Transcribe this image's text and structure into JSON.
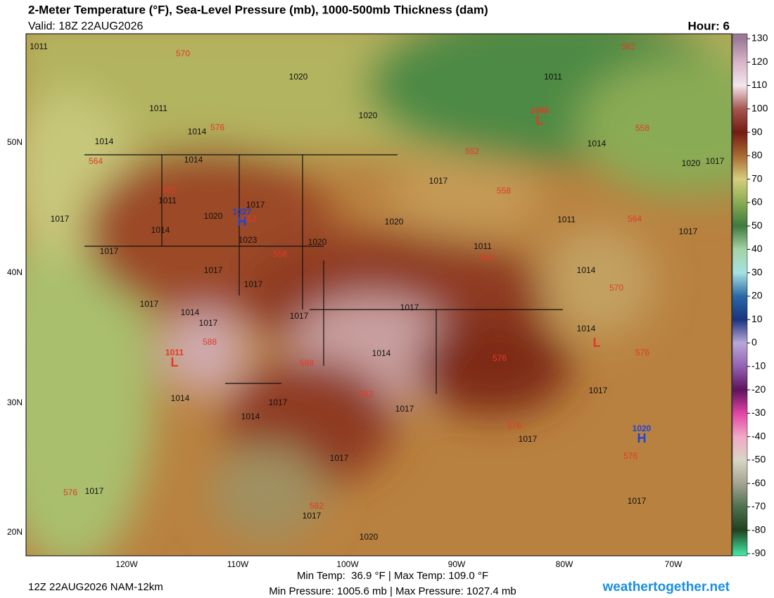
{
  "header": {
    "title": "2-Meter Temperature (°F), Sea-Level Pressure (mb), 1000-500mb Thickness (dam)",
    "valid": "Valid: 18Z 22AUG2026",
    "hour": "Hour: 6"
  },
  "map": {
    "latitude_labels": [
      "50N",
      "40N",
      "30N",
      "20N"
    ],
    "longitude_labels": [
      "120W",
      "110W",
      "100W",
      "90W",
      "80W",
      "70W"
    ],
    "isobar_labels": [
      "1011",
      "1020",
      "1011",
      "1011",
      "1014",
      "1020",
      "1014",
      "1014",
      "1014",
      "1017",
      "1020",
      "1017",
      "1011",
      "1017",
      "1020",
      "1020",
      "1011",
      "1017",
      "1017",
      "1014",
      "1023",
      "1020",
      "1017",
      "1011",
      "1014",
      "1017",
      "1017",
      "1017",
      "1014",
      "1017",
      "1017",
      "1017",
      "1014",
      "1014",
      "1014",
      "1017",
      "1017",
      "1017",
      "1014",
      "1017",
      "1017",
      "1017",
      "1017",
      "1020",
      "1017"
    ],
    "thickness_labels": [
      "570",
      "582",
      "576",
      "558",
      "564",
      "552",
      "558",
      "582",
      "552",
      "564",
      "558",
      "564",
      "570",
      "588",
      "588",
      "576",
      "576",
      "582",
      "576",
      "576",
      "576",
      "582"
    ],
    "pressure_centers": [
      {
        "symbol": "L",
        "pressure": "1008"
      },
      {
        "symbol": "H",
        "pressure": "1027"
      },
      {
        "symbol": "H",
        "pressure": "1020"
      },
      {
        "symbol": "L"
      },
      {
        "symbol": "L",
        "pressure": "1011"
      }
    ]
  },
  "colorbar": {
    "ticks": [
      130,
      120,
      110,
      100,
      90,
      80,
      70,
      60,
      50,
      40,
      30,
      20,
      10,
      0,
      -10,
      -20,
      -30,
      -40,
      -50,
      -60,
      -70,
      -80,
      -90
    ]
  },
  "footer": {
    "run": "12Z 22AUG2026 NAM-12km",
    "temperature_range": "Min Temp:  36.9 °F | Max Temp: 109.0 °F",
    "pressure_range": "Min Pressure: 1005.6 mb | Max Pressure: 1027.4 mb",
    "website": "weathertogether.net"
  }
}
